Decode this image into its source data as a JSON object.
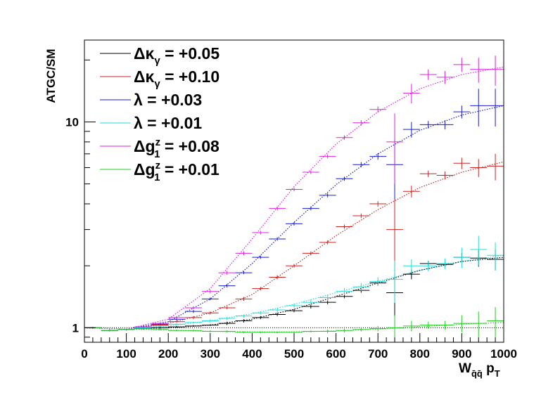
{
  "chart_data": {
    "type": "scatter",
    "title": "",
    "xlabel": {
      "main": "W",
      "sub": "q̄q̄",
      "rest": " p",
      "rest_sub": "T"
    },
    "ylabel": "ATGC/SM",
    "xlim": [
      0,
      1000
    ],
    "ylim": [
      0.85,
      25
    ],
    "yscale": "log",
    "x_ticks": [
      0,
      100,
      200,
      300,
      400,
      500,
      600,
      700,
      800,
      900,
      1000
    ],
    "x_tick_labels": [
      "0",
      "100",
      "200",
      "300",
      "400",
      "500",
      "600",
      "700",
      "800",
      "900",
      "1000"
    ],
    "y_ticks": [
      1,
      10
    ],
    "y_tick_labels": [
      "1",
      "10"
    ],
    "bin_width": 40,
    "legend_position": "top-left",
    "reference_line": 1,
    "series": [
      {
        "name": "Δκγ = +0.05",
        "legend": {
          "sym": "Δκ",
          "sub": "γ",
          "sup": "",
          "rest": " = +0.05"
        },
        "color": "#000000",
        "x": [
          20,
          60,
          100,
          140,
          180,
          220,
          260,
          300,
          340,
          380,
          420,
          460,
          500,
          540,
          580,
          620,
          660,
          700,
          740,
          780,
          820,
          860,
          900,
          940,
          980
        ],
        "y": [
          1.0,
          0.97,
          0.98,
          0.99,
          1.0,
          1.01,
          1.02,
          1.03,
          1.05,
          1.08,
          1.12,
          1.16,
          1.21,
          1.27,
          1.33,
          1.42,
          1.52,
          1.65,
          1.48,
          1.82,
          2.05,
          2.03,
          2.2,
          2.18,
          2.15
        ],
        "yerr": [
          0.01,
          0.01,
          0.01,
          0.01,
          0.01,
          0.01,
          0.01,
          0.01,
          0.02,
          0.02,
          0.02,
          0.02,
          0.02,
          0.03,
          0.03,
          0.03,
          0.04,
          0.05,
          0.35,
          0.1,
          0.06,
          0.06,
          0.1,
          0.2,
          0.25
        ],
        "fit": [
          [
            0,
            1.0
          ],
          [
            100,
            0.985
          ],
          [
            200,
            1.0
          ],
          [
            300,
            1.03
          ],
          [
            400,
            1.1
          ],
          [
            500,
            1.23
          ],
          [
            600,
            1.42
          ],
          [
            700,
            1.65
          ],
          [
            800,
            1.9
          ],
          [
            900,
            2.1
          ],
          [
            1000,
            2.2
          ]
        ]
      },
      {
        "name": "Δκγ = +0.10",
        "legend": {
          "sym": "Δκ",
          "sub": "γ",
          "sup": "",
          "rest": " = +0.10"
        },
        "color": "#cc2222",
        "x": [
          20,
          60,
          100,
          140,
          180,
          220,
          260,
          300,
          340,
          380,
          420,
          460,
          500,
          540,
          580,
          620,
          660,
          700,
          740,
          780,
          820,
          860,
          900,
          940,
          980
        ],
        "y": [
          1.0,
          0.97,
          0.98,
          1.0,
          1.03,
          1.07,
          1.12,
          1.18,
          1.25,
          1.38,
          1.55,
          1.76,
          2.0,
          2.3,
          2.6,
          3.1,
          3.5,
          4.0,
          3.0,
          4.6,
          5.6,
          5.5,
          6.3,
          6.0,
          6.1
        ],
        "yerr": [
          0.01,
          0.01,
          0.01,
          0.01,
          0.01,
          0.01,
          0.02,
          0.02,
          0.02,
          0.03,
          0.03,
          0.04,
          0.04,
          0.05,
          0.06,
          0.07,
          0.09,
          0.12,
          1.2,
          0.3,
          0.2,
          0.25,
          0.4,
          0.6,
          0.9
        ],
        "fit": [
          [
            0,
            1.0
          ],
          [
            100,
            0.985
          ],
          [
            200,
            1.05
          ],
          [
            300,
            1.18
          ],
          [
            400,
            1.45
          ],
          [
            500,
            2.0
          ],
          [
            600,
            2.8
          ],
          [
            700,
            3.75
          ],
          [
            800,
            4.8
          ],
          [
            900,
            5.7
          ],
          [
            1000,
            6.4
          ]
        ]
      },
      {
        "name": "λ = +0.03",
        "legend": {
          "sym": "λ",
          "sub": "",
          "sup": "",
          "rest": " = +0.03"
        },
        "color": "#1a1acc",
        "x": [
          20,
          60,
          100,
          140,
          180,
          220,
          260,
          300,
          340,
          380,
          420,
          460,
          500,
          540,
          580,
          620,
          660,
          700,
          740,
          780,
          820,
          860,
          900,
          940,
          980
        ],
        "y": [
          1.0,
          0.97,
          0.98,
          1.01,
          1.04,
          1.1,
          1.2,
          1.38,
          1.6,
          1.85,
          2.2,
          2.7,
          3.2,
          3.8,
          4.4,
          5.3,
          6.2,
          6.8,
          6.2,
          9.2,
          9.7,
          9.7,
          11.2,
          12.0,
          12.0
        ],
        "yerr": [
          0.01,
          0.01,
          0.01,
          0.01,
          0.01,
          0.02,
          0.02,
          0.02,
          0.03,
          0.03,
          0.04,
          0.05,
          0.06,
          0.08,
          0.1,
          0.12,
          0.18,
          0.25,
          2.0,
          0.8,
          0.4,
          0.5,
          0.8,
          2.5,
          2.5
        ],
        "fit": [
          [
            0,
            1.0
          ],
          [
            100,
            0.985
          ],
          [
            200,
            1.07
          ],
          [
            300,
            1.38
          ],
          [
            400,
            2.05
          ],
          [
            500,
            3.25
          ],
          [
            600,
            4.95
          ],
          [
            700,
            7.0
          ],
          [
            800,
            9.1
          ],
          [
            900,
            10.8
          ],
          [
            1000,
            12.0
          ]
        ]
      },
      {
        "name": "λ = +0.01",
        "legend": {
          "sym": "λ",
          "sub": "",
          "sup": "",
          "rest": " = +0.01"
        },
        "color": "#22dddd",
        "x": [
          20,
          60,
          100,
          140,
          180,
          220,
          260,
          300,
          340,
          380,
          420,
          460,
          500,
          540,
          580,
          620,
          660,
          700,
          740,
          780,
          820,
          860,
          900,
          940,
          980
        ],
        "y": [
          1.0,
          0.97,
          0.98,
          1.0,
          1.02,
          1.04,
          1.06,
          1.08,
          1.11,
          1.14,
          1.18,
          1.22,
          1.28,
          1.33,
          1.4,
          1.5,
          1.58,
          1.68,
          1.72,
          2.0,
          2.0,
          2.05,
          2.2,
          2.4,
          2.25
        ],
        "yerr": [
          0.01,
          0.01,
          0.01,
          0.01,
          0.01,
          0.01,
          0.01,
          0.02,
          0.02,
          0.02,
          0.02,
          0.03,
          0.03,
          0.04,
          0.05,
          0.06,
          0.07,
          0.08,
          0.4,
          0.15,
          0.12,
          0.12,
          0.25,
          0.4,
          0.35
        ],
        "fit": [
          [
            0,
            1.0
          ],
          [
            100,
            0.985
          ],
          [
            200,
            1.02
          ],
          [
            300,
            1.08
          ],
          [
            400,
            1.17
          ],
          [
            500,
            1.3
          ],
          [
            600,
            1.48
          ],
          [
            700,
            1.68
          ],
          [
            800,
            1.9
          ],
          [
            900,
            2.1
          ],
          [
            1000,
            2.25
          ]
        ]
      },
      {
        "name": "Δg1z = +0.08",
        "legend": {
          "sym": "Δg",
          "sub": "1",
          "sup": "z",
          "rest": " = +0.08"
        },
        "color": "#dd22dd",
        "x": [
          20,
          60,
          100,
          140,
          180,
          220,
          260,
          300,
          340,
          380,
          420,
          460,
          500,
          540,
          580,
          620,
          660,
          700,
          740,
          780,
          820,
          860,
          900,
          940,
          980
        ],
        "y": [
          1.0,
          0.97,
          0.98,
          1.01,
          1.05,
          1.12,
          1.25,
          1.5,
          1.85,
          2.3,
          2.9,
          3.8,
          4.7,
          5.7,
          6.8,
          8.4,
          9.9,
          11.5,
          8.0,
          13.8,
          17.0,
          16.5,
          19.0,
          18.0,
          18.0
        ],
        "yerr": [
          0.01,
          0.01,
          0.01,
          0.01,
          0.01,
          0.02,
          0.02,
          0.03,
          0.04,
          0.05,
          0.06,
          0.08,
          0.1,
          0.12,
          0.15,
          0.2,
          0.3,
          0.4,
          3.0,
          1.5,
          1.0,
          1.2,
          1.5,
          2.5,
          3.0
        ],
        "fit": [
          [
            0,
            1.0
          ],
          [
            100,
            0.985
          ],
          [
            200,
            1.1
          ],
          [
            300,
            1.55
          ],
          [
            400,
            2.7
          ],
          [
            500,
            4.85
          ],
          [
            600,
            7.8
          ],
          [
            700,
            11.2
          ],
          [
            800,
            14.5
          ],
          [
            900,
            17.0
          ],
          [
            1000,
            18.5
          ]
        ]
      },
      {
        "name": "Δg1z = +0.01",
        "legend": {
          "sym": "Δg",
          "sub": "1",
          "sup": "z",
          "rest": " = +0.01"
        },
        "color": "#22cc22",
        "x": [
          20,
          60,
          100,
          140,
          180,
          220,
          260,
          300,
          340,
          380,
          420,
          460,
          500,
          540,
          580,
          620,
          660,
          700,
          740,
          780,
          820,
          860,
          900,
          940,
          980
        ],
        "y": [
          1.0,
          0.97,
          0.98,
          0.99,
          0.98,
          0.97,
          0.97,
          0.96,
          0.96,
          0.95,
          0.95,
          0.95,
          0.95,
          0.96,
          0.96,
          0.97,
          0.98,
          0.99,
          1.0,
          1.02,
          1.03,
          1.03,
          1.05,
          1.05,
          1.08
        ],
        "yerr": [
          0.01,
          0.01,
          0.01,
          0.01,
          0.01,
          0.01,
          0.01,
          0.01,
          0.01,
          0.01,
          0.01,
          0.01,
          0.01,
          0.01,
          0.02,
          0.02,
          0.02,
          0.03,
          0.15,
          0.06,
          0.04,
          0.05,
          0.1,
          0.15,
          0.18
        ],
        "fit": [
          [
            0,
            1.0
          ],
          [
            100,
            0.985
          ],
          [
            200,
            0.975
          ],
          [
            300,
            0.96
          ],
          [
            400,
            0.955
          ],
          [
            500,
            0.955
          ],
          [
            600,
            0.965
          ],
          [
            700,
            0.985
          ],
          [
            800,
            1.01
          ],
          [
            900,
            1.04
          ],
          [
            1000,
            1.06
          ]
        ]
      }
    ]
  }
}
